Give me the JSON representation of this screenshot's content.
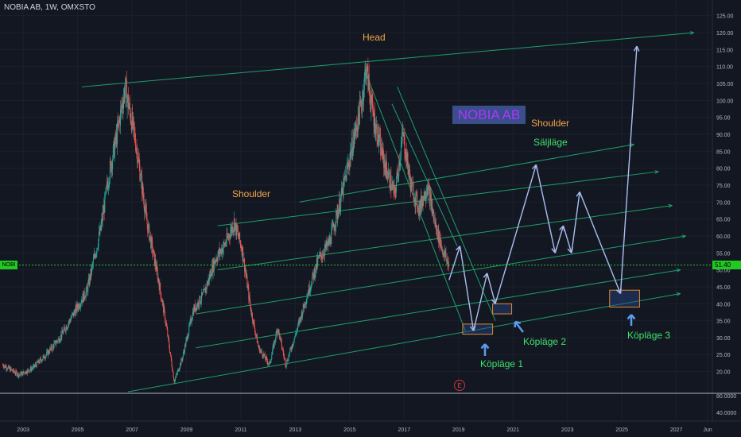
{
  "header": {
    "title": "NOBIA AB, 1W, OMXSTO"
  },
  "symbol_tag": "NOBI",
  "current_price_tag": "51.40",
  "brand_box": "NOBIA AB",
  "annotations": {
    "head": "Head",
    "shoulder_left": "Shoulder",
    "shoulder_right": "Shoulder",
    "sell": "Säljläge",
    "buy1": "Köpläge 1",
    "buy2": "Köpläge 2",
    "buy3": "Köpläge 3",
    "earnings_marker": "E"
  },
  "colors": {
    "background": "#131722",
    "up_candle": "#26a69a",
    "down_candle": "#ef5350",
    "channel": "#1e9e6a",
    "projection": "#a8bfee",
    "price_line": "#22c922"
  },
  "chart_data": [
    {
      "type": "candlestick",
      "title": "NOBIA AB, 1W, OMXSTO",
      "x_ticks": [
        "2003",
        "2005",
        "2007",
        "2009",
        "2011",
        "2013",
        "2015",
        "2017",
        "2019",
        "2021",
        "2023",
        "2025",
        "2027",
        "Jun"
      ],
      "y_ticks": [
        "20.00",
        "25.00",
        "30.00",
        "35.00",
        "40.00",
        "45.00",
        "50.00",
        "55.00",
        "60.00",
        "65.00",
        "70.00",
        "75.00",
        "80.00",
        "85.00",
        "90.00",
        "95.00",
        "100.00",
        "105.00",
        "110.00",
        "115.00",
        "120.00",
        "125.00"
      ],
      "ylim": [
        15,
        127
      ],
      "xlim": [
        2002.5,
        2028.5
      ],
      "last_price": 51.4,
      "price_path": [
        [
          2002.6,
          22
        ],
        [
          2003.2,
          19
        ],
        [
          2003.7,
          21
        ],
        [
          2004.2,
          25
        ],
        [
          2004.7,
          30
        ],
        [
          2005.2,
          37
        ],
        [
          2005.7,
          44
        ],
        [
          2006.2,
          62
        ],
        [
          2006.5,
          78
        ],
        [
          2006.8,
          90
        ],
        [
          2007.1,
          104
        ],
        [
          2007.5,
          87
        ],
        [
          2007.9,
          64
        ],
        [
          2008.3,
          48
        ],
        [
          2008.6,
          34
        ],
        [
          2008.9,
          17
        ],
        [
          2009.2,
          24
        ],
        [
          2009.6,
          38
        ],
        [
          2010.0,
          43
        ],
        [
          2010.4,
          53
        ],
        [
          2010.8,
          58
        ],
        [
          2011.1,
          64
        ],
        [
          2011.4,
          56
        ],
        [
          2011.7,
          39
        ],
        [
          2012.0,
          27
        ],
        [
          2012.4,
          22
        ],
        [
          2012.7,
          33
        ],
        [
          2013.0,
          22
        ],
        [
          2013.4,
          32
        ],
        [
          2013.8,
          43
        ],
        [
          2014.2,
          53
        ],
        [
          2014.6,
          58
        ],
        [
          2015.0,
          70
        ],
        [
          2015.4,
          85
        ],
        [
          2015.8,
          100
        ],
        [
          2015.95,
          110
        ],
        [
          2016.2,
          96
        ],
        [
          2016.6,
          82
        ],
        [
          2017.0,
          72
        ],
        [
          2017.3,
          90
        ],
        [
          2017.6,
          75
        ],
        [
          2017.9,
          68
        ],
        [
          2018.2,
          75
        ],
        [
          2018.5,
          63
        ],
        [
          2018.8,
          55
        ],
        [
          2019.0,
          51.4
        ]
      ],
      "projection_path": [
        [
          2019.0,
          47
        ],
        [
          2019.4,
          57
        ],
        [
          2019.9,
          32
        ],
        [
          2020.4,
          49
        ],
        [
          2020.7,
          40
        ],
        [
          2022.2,
          81
        ],
        [
          2022.9,
          55
        ],
        [
          2023.2,
          63
        ],
        [
          2023.5,
          55
        ],
        [
          2023.8,
          73
        ],
        [
          2025.3,
          43
        ],
        [
          2025.9,
          116
        ]
      ],
      "buy_zones": [
        {
          "name": "Köpläge 1",
          "x": [
            2019.5,
            2020.6
          ],
          "y": [
            31,
            34
          ]
        },
        {
          "name": "Köpläge 2",
          "x": [
            2020.6,
            2021.3
          ],
          "y": [
            37,
            40
          ]
        },
        {
          "name": "Köpläge 3",
          "x": [
            2024.9,
            2026.0
          ],
          "y": [
            39,
            44
          ]
        }
      ],
      "channels": [
        {
          "from": [
            2005.5,
            104
          ],
          "to": [
            2028.0,
            120
          ]
        },
        {
          "from": [
            2007.2,
            14
          ],
          "to": [
            2027.5,
            43
          ]
        },
        {
          "from": [
            2009.7,
            27
          ],
          "to": [
            2027.5,
            50
          ]
        },
        {
          "from": [
            2009.7,
            37
          ],
          "to": [
            2027.7,
            60
          ]
        },
        {
          "from": [
            2010.5,
            50
          ],
          "to": [
            2027.2,
            69
          ]
        },
        {
          "from": [
            2010.5,
            63
          ],
          "to": [
            2026.7,
            79
          ]
        },
        {
          "from": [
            2013.5,
            70
          ],
          "to": [
            2025.8,
            87
          ]
        },
        {
          "from": [
            2015.9,
            109
          ],
          "to": [
            2019.6,
            32
          ]
        },
        {
          "from": [
            2016.9,
            99
          ],
          "to": [
            2019.3,
            57
          ]
        },
        {
          "from": [
            2017.1,
            104
          ],
          "to": [
            2020.7,
            35
          ]
        }
      ]
    },
    {
      "type": "indicator",
      "y_ticks": [
        "80.0000",
        "40.0000"
      ]
    }
  ]
}
